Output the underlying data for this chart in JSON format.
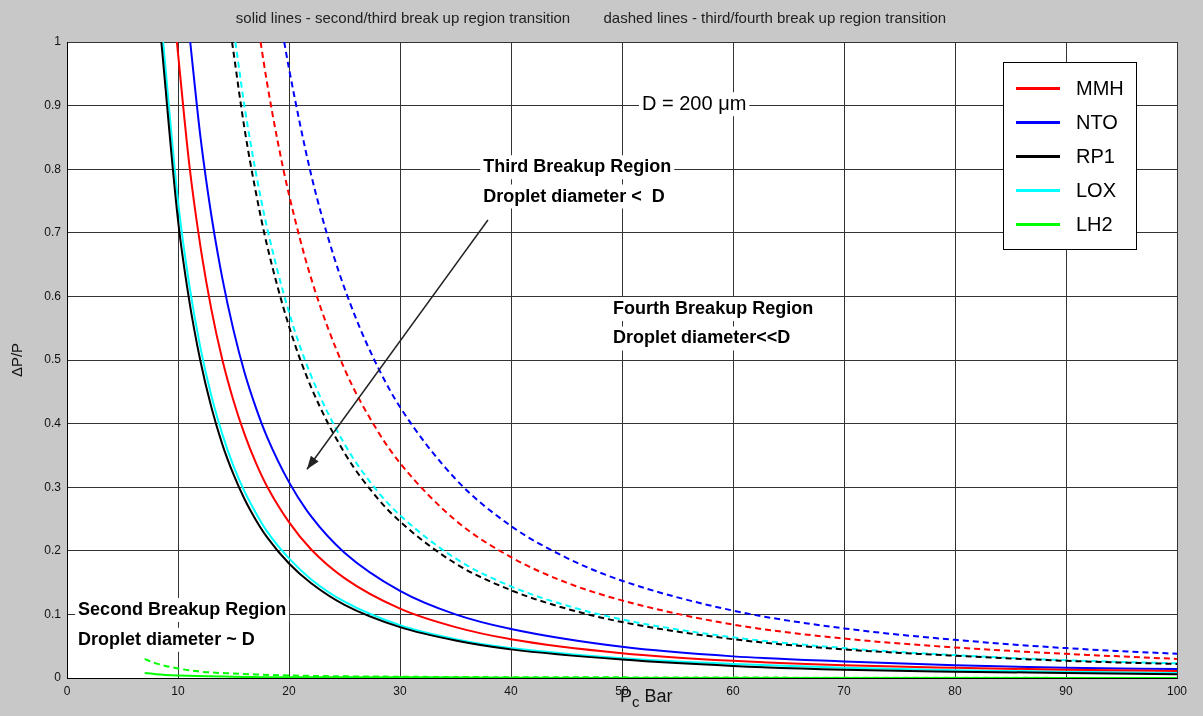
{
  "chart_data": {
    "type": "line",
    "title": "solid lines - second/third break up region transition        dashed lines - third/fourth break up region transition",
    "xlabel": "P$_{c}$ Bar",
    "ylabel": "ΔP/P",
    "annotations": [
      "D = 200 μm",
      "Third Breakup Region",
      "Droplet diameter <  D",
      "Fourth Breakup Region",
      "Droplet diameter<<D",
      "Second Breakup Region",
      "Droplet diameter ~ D"
    ],
    "xlim": [
      0,
      100
    ],
    "ylim": [
      0,
      1
    ],
    "xticks": [
      0,
      10,
      20,
      30,
      40,
      50,
      60,
      70,
      80,
      90,
      100
    ],
    "yticks": [
      0,
      0.1,
      0.2,
      0.3,
      0.4,
      0.5,
      0.6,
      0.7,
      0.8,
      0.9,
      1
    ],
    "grid": true,
    "legend": "top right",
    "marker": "none",
    "series": [
      {
        "name": "MMH",
        "color": "#ff0000",
        "line_style": "solid",
        "x": [
          9.9,
          11,
          12,
          13,
          14,
          15,
          16,
          17,
          18,
          20,
          22,
          25,
          30,
          35,
          40,
          50,
          60,
          70,
          80,
          90,
          100
        ],
        "values": [
          1.0,
          0.81,
          0.681,
          0.58,
          0.5,
          0.436,
          0.383,
          0.339,
          0.302,
          0.245,
          0.202,
          0.157,
          0.109,
          0.08,
          0.061,
          0.039,
          0.027,
          0.02,
          0.016,
          0.013,
          0.011
        ]
      },
      {
        "name": "NTO",
        "color": "#0000ff",
        "line_style": "solid",
        "x": [
          11.1,
          12,
          13,
          14,
          15,
          16,
          17,
          18,
          20,
          22,
          25,
          30,
          35,
          40,
          50,
          60,
          70,
          80,
          90,
          100
        ],
        "values": [
          1.0,
          0.854,
          0.728,
          0.628,
          0.547,
          0.48,
          0.426,
          0.38,
          0.308,
          0.254,
          0.197,
          0.137,
          0.1,
          0.077,
          0.049,
          0.034,
          0.026,
          0.02,
          0.016,
          0.014
        ]
      },
      {
        "name": "RP1",
        "color": "#000000",
        "line_style": "solid",
        "x": [
          8.5,
          10,
          11,
          12,
          13,
          14,
          15,
          16,
          17,
          18,
          20,
          22,
          25,
          30,
          35,
          40,
          50,
          60,
          70,
          80,
          90,
          100
        ],
        "values": [
          1.0,
          0.72,
          0.595,
          0.5,
          0.426,
          0.367,
          0.32,
          0.281,
          0.249,
          0.222,
          0.18,
          0.149,
          0.115,
          0.08,
          0.059,
          0.045,
          0.029,
          0.019,
          0.013,
          0.01,
          0.008,
          0.006
        ]
      },
      {
        "name": "LOX",
        "color": "#00ffff",
        "line_style": "solid",
        "x": [
          8.66,
          10,
          11,
          12,
          13,
          14,
          15,
          16,
          17,
          18,
          20,
          22,
          25,
          30,
          35,
          40,
          50,
          60,
          70,
          80,
          90,
          100
        ],
        "values": [
          1.0,
          0.75,
          0.62,
          0.521,
          0.444,
          0.383,
          0.333,
          0.293,
          0.26,
          0.231,
          0.188,
          0.155,
          0.12,
          0.083,
          0.061,
          0.047,
          0.031,
          0.022,
          0.016,
          0.012,
          0.01,
          0.008
        ]
      },
      {
        "name": "LH2",
        "color": "#00ff00",
        "line_style": "solid",
        "x": [
          7,
          8,
          10,
          15,
          20,
          30,
          50,
          100
        ],
        "values": [
          0.008,
          0.006,
          0.004,
          0.002,
          0.001,
          0.001,
          0.0,
          0.0
        ]
      },
      {
        "color": "#ff0000",
        "line_style": "dashed",
        "x": [
          17.44,
          18,
          19,
          20,
          22,
          25,
          28,
          30,
          35,
          40,
          45,
          50,
          60,
          70,
          80,
          90,
          100
        ],
        "values": [
          1.0,
          0.938,
          0.842,
          0.76,
          0.628,
          0.486,
          0.388,
          0.338,
          0.248,
          0.19,
          0.15,
          0.122,
          0.084,
          0.062,
          0.048,
          0.038,
          0.03
        ]
      },
      {
        "color": "#0000ff",
        "line_style": "dashed",
        "x": [
          19.57,
          20,
          22,
          24,
          26,
          28,
          30,
          35,
          40,
          45,
          50,
          60,
          70,
          80,
          90,
          100
        ],
        "values": [
          1.0,
          0.958,
          0.791,
          0.665,
          0.567,
          0.489,
          0.426,
          0.313,
          0.239,
          0.189,
          0.153,
          0.106,
          0.078,
          0.06,
          0.047,
          0.038
        ]
      },
      {
        "color": "#000000",
        "line_style": "dashed",
        "x": [
          14.87,
          16,
          17,
          18,
          20,
          22,
          25,
          28,
          30,
          35,
          40,
          45,
          50,
          60,
          70,
          80,
          90,
          100
        ],
        "values": [
          1.0,
          0.863,
          0.765,
          0.682,
          0.553,
          0.457,
          0.354,
          0.282,
          0.246,
          0.18,
          0.138,
          0.109,
          0.088,
          0.061,
          0.045,
          0.035,
          0.027,
          0.022
        ]
      },
      {
        "color": "#00ffff",
        "line_style": "dashed",
        "x": [
          15.17,
          16,
          17,
          18,
          20,
          22,
          25,
          28,
          30,
          35,
          40,
          45,
          50,
          60,
          70,
          80,
          90,
          100
        ],
        "values": [
          1.0,
          0.898,
          0.796,
          0.71,
          0.575,
          0.475,
          0.368,
          0.293,
          0.256,
          0.188,
          0.144,
          0.114,
          0.092,
          0.064,
          0.047,
          0.036,
          0.028,
          0.023
        ]
      },
      {
        "color": "#00ff00",
        "line_style": "dashed",
        "x": [
          7,
          8,
          10,
          12,
          15,
          20,
          30,
          50,
          100
        ],
        "values": [
          0.03,
          0.023,
          0.015,
          0.01,
          0.007,
          0.004,
          0.002,
          0.001,
          0.0
        ]
      }
    ]
  }
}
